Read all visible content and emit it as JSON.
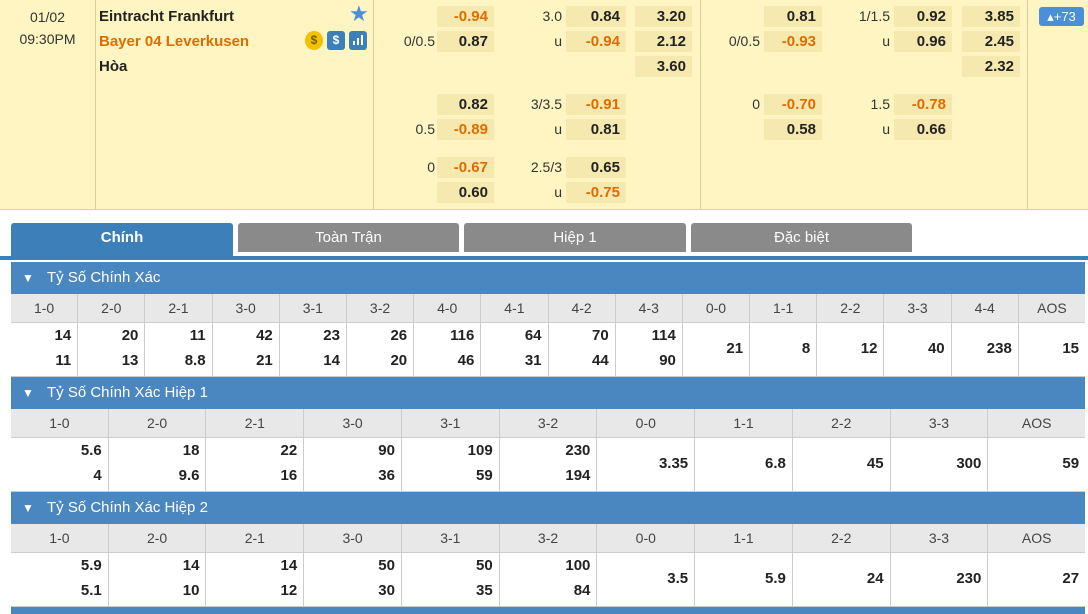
{
  "match": {
    "date": "01/02",
    "time": "09:30PM",
    "home": "Eintracht Frankfurt",
    "away": "Bayer 04 Leverkusen",
    "draw": "Hòa",
    "more": "+73",
    "icons": [
      "money-icon",
      "dollar-icon",
      "stats-icon"
    ],
    "ft_hdp": {
      "line1": {
        "hdp_home": "",
        "home": "-0.94",
        "hdp_away": "0/0.5",
        "away": "0.87"
      },
      "line2": {
        "hdp_home": "",
        "home": "0.82",
        "hdp_away": "0.5",
        "away": "-0.89"
      },
      "line3": {
        "hdp_home": "0",
        "home": "-0.67",
        "hdp_away": "",
        "away": "0.60"
      }
    },
    "ft_ou": {
      "line1": {
        "total": "3.0",
        "over": "0.84",
        "u": "u",
        "under": "-0.94"
      },
      "line2": {
        "total": "3/3.5",
        "over": "-0.91",
        "u": "u",
        "under": "0.81"
      },
      "line3": {
        "total": "2.5/3",
        "over": "0.65",
        "u": "u",
        "under": "-0.75"
      }
    },
    "ft_1x2": {
      "home": "3.20",
      "away": "2.12",
      "draw": "3.60"
    },
    "h1_hdp": {
      "line1": {
        "hdp_home": "",
        "home": "0.81",
        "hdp_away": "0/0.5",
        "away": "-0.93"
      },
      "line2": {
        "hdp_home": "0",
        "home": "-0.70",
        "hdp_away": "",
        "away": "0.58"
      }
    },
    "h1_ou": {
      "line1": {
        "total": "1/1.5",
        "over": "0.92",
        "u": "u",
        "under": "0.96"
      },
      "line2": {
        "total": "1.5",
        "over": "-0.78",
        "u": "u",
        "under": "0.66"
      }
    },
    "h1_1x2": {
      "home": "3.85",
      "away": "2.45",
      "draw": "2.32"
    }
  },
  "tabs": [
    "Chính",
    "Toàn Trận",
    "Hiệp 1",
    "Đặc biệt"
  ],
  "sections": [
    {
      "title": "Tỷ Số Chính Xác",
      "headers": [
        "1-0",
        "2-0",
        "2-1",
        "3-0",
        "3-1",
        "3-2",
        "4-0",
        "4-1",
        "4-2",
        "4-3",
        "0-0",
        "1-1",
        "2-2",
        "3-3",
        "4-4",
        "AOS"
      ],
      "values": [
        [
          "14",
          "11"
        ],
        [
          "20",
          "13"
        ],
        [
          "11",
          "8.8"
        ],
        [
          "42",
          "21"
        ],
        [
          "23",
          "14"
        ],
        [
          "26",
          "20"
        ],
        [
          "116",
          "46"
        ],
        [
          "64",
          "31"
        ],
        [
          "70",
          "44"
        ],
        [
          "114",
          "90"
        ],
        [
          "21"
        ],
        [
          "8"
        ],
        [
          "12"
        ],
        [
          "40"
        ],
        [
          "238"
        ],
        [
          "15"
        ]
      ]
    },
    {
      "title": "Tỷ Số Chính Xác Hiệp 1",
      "headers": [
        "1-0",
        "2-0",
        "2-1",
        "3-0",
        "3-1",
        "3-2",
        "0-0",
        "1-1",
        "2-2",
        "3-3",
        "AOS"
      ],
      "values": [
        [
          "5.6",
          "4"
        ],
        [
          "18",
          "9.6"
        ],
        [
          "22",
          "16"
        ],
        [
          "90",
          "36"
        ],
        [
          "109",
          "59"
        ],
        [
          "230",
          "194"
        ],
        [
          "3.35"
        ],
        [
          "6.8"
        ],
        [
          "45"
        ],
        [
          "300"
        ],
        [
          "59"
        ]
      ]
    },
    {
      "title": "Tỷ Số Chính Xác Hiệp 2",
      "headers": [
        "1-0",
        "2-0",
        "2-1",
        "3-0",
        "3-1",
        "3-2",
        "0-0",
        "1-1",
        "2-2",
        "3-3",
        "AOS"
      ],
      "values": [
        [
          "5.9",
          "5.1"
        ],
        [
          "14",
          "10"
        ],
        [
          "14",
          "12"
        ],
        [
          "50",
          "30"
        ],
        [
          "50",
          "35"
        ],
        [
          "100",
          "84"
        ],
        [
          "3.5"
        ],
        [
          "5.9"
        ],
        [
          "24"
        ],
        [
          "230"
        ],
        [
          "27"
        ]
      ]
    }
  ],
  "colors": {
    "accent": "#3d7fb8",
    "section": "#4a86c0",
    "negative": "#e06c00",
    "match_bg": "#fff5c2",
    "tab_inactive": "#8a8a8a"
  }
}
